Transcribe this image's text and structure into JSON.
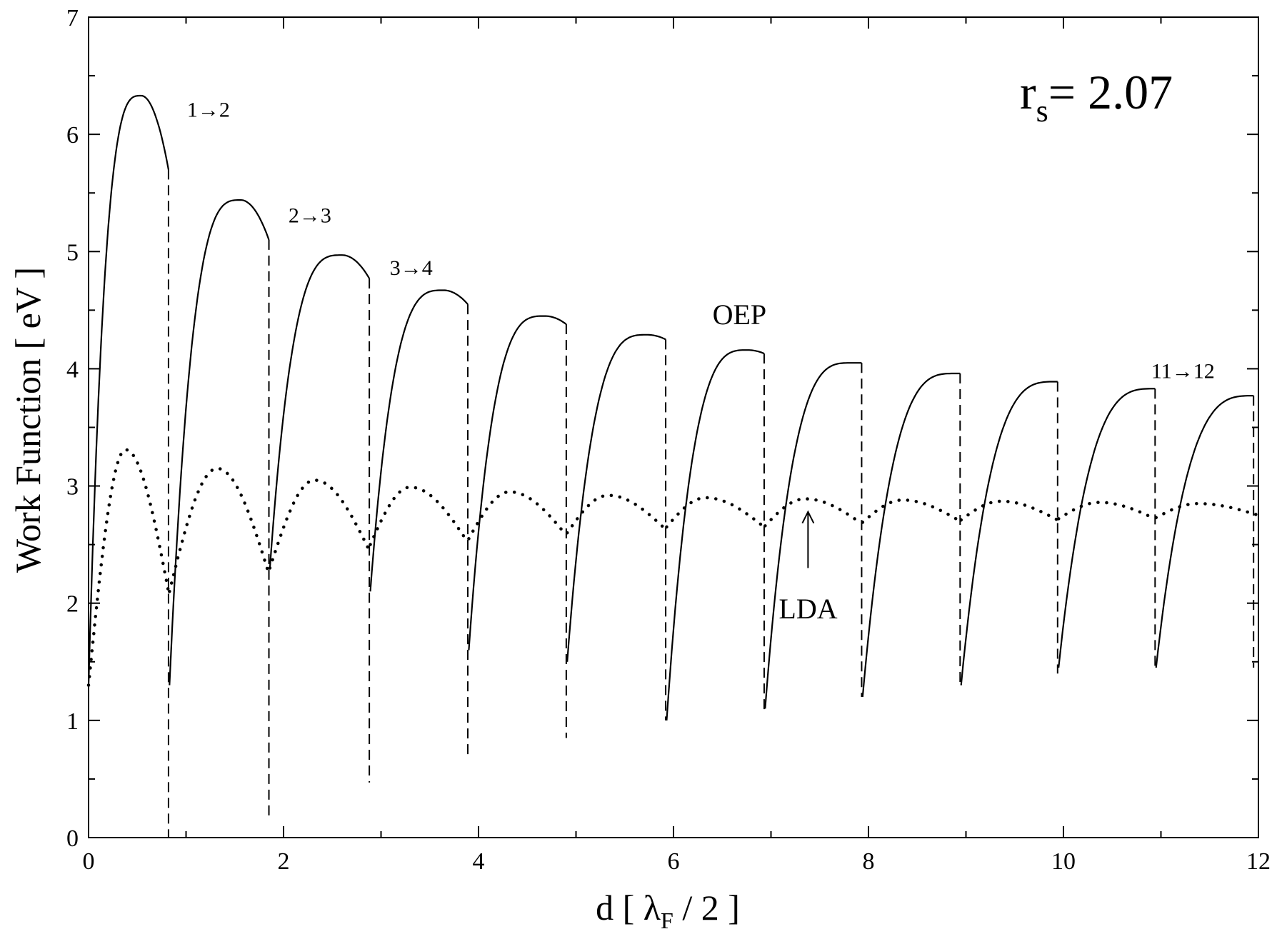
{
  "chart_data": {
    "type": "line",
    "title": "",
    "xlabel_main": "d [ λ",
    "xlabel_sub": "F",
    "xlabel_tail": " / 2 ]",
    "ylabel": "Work Function [ eV ]",
    "xlim": [
      0,
      12
    ],
    "ylim": [
      0,
      7
    ],
    "xticks": [
      0,
      2,
      4,
      6,
      8,
      10,
      12
    ],
    "yticks": [
      0,
      1,
      2,
      3,
      4,
      5,
      6,
      7
    ],
    "x_minor_step": 1,
    "y_minor_step": 0.5,
    "grid": false,
    "inset_label": {
      "main": "r",
      "sub": "s",
      "tail": "= 2.07"
    },
    "series": [
      {
        "name": "OEP",
        "style": "solid",
        "color": "#000000",
        "arches": [
          {
            "start": 0.0,
            "start_y": 1.3,
            "peak": 0.54,
            "peak_y": 6.33,
            "end": 0.82,
            "end_y": 5.7,
            "min_y": 0.0
          },
          {
            "start": 0.83,
            "start_y": 1.3,
            "peak": 1.56,
            "peak_y": 5.44,
            "end": 1.85,
            "end_y": 5.1,
            "min_y": 0.15
          },
          {
            "start": 1.86,
            "start_y": 2.3,
            "peak": 2.6,
            "peak_y": 4.97,
            "end": 2.88,
            "end_y": 4.77,
            "min_y": 0.47
          },
          {
            "start": 2.89,
            "start_y": 2.1,
            "peak": 3.64,
            "peak_y": 4.67,
            "end": 3.89,
            "end_y": 4.55,
            "min_y": 0.68
          },
          {
            "start": 3.9,
            "start_y": 1.6,
            "peak": 4.68,
            "peak_y": 4.45,
            "end": 4.9,
            "end_y": 4.38,
            "min_y": 0.85
          },
          {
            "start": 4.91,
            "start_y": 1.5,
            "peak": 5.73,
            "peak_y": 4.29,
            "end": 5.92,
            "end_y": 4.25,
            "min_y": 1.0
          },
          {
            "start": 5.93,
            "start_y": 1.0,
            "peak": 6.76,
            "peak_y": 4.16,
            "end": 6.93,
            "end_y": 4.13,
            "min_y": 1.07
          },
          {
            "start": 6.94,
            "start_y": 1.1,
            "peak": 7.82,
            "peak_y": 4.05,
            "end": 7.93,
            "end_y": 4.05,
            "min_y": 1.2
          },
          {
            "start": 7.94,
            "start_y": 1.2,
            "peak": 8.89,
            "peak_y": 3.96,
            "end": 8.94,
            "end_y": 3.96,
            "min_y": 1.3
          },
          {
            "start": 8.95,
            "start_y": 1.3,
            "peak": 9.92,
            "peak_y": 3.89,
            "end": 9.94,
            "end_y": 3.89,
            "min_y": 1.4
          },
          {
            "start": 9.95,
            "start_y": 1.45,
            "peak": 10.93,
            "peak_y": 3.83,
            "end": 10.94,
            "end_y": 3.83,
            "min_y": 1.45
          },
          {
            "start": 10.95,
            "start_y": 1.45,
            "peak": 11.95,
            "peak_y": 3.77,
            "end": 11.95,
            "end_y": 3.77,
            "min_y": 1.45
          }
        ]
      },
      {
        "name": "LDA",
        "style": "dotted",
        "color": "#000000",
        "arches": [
          {
            "start": 0.0,
            "start_y": 1.3,
            "peak": 0.38,
            "peak_y": 3.31,
            "end": 0.82,
            "end_y": 2.1
          },
          {
            "start": 0.83,
            "start_y": 2.1,
            "peak": 1.32,
            "peak_y": 3.15,
            "end": 1.85,
            "end_y": 2.25
          },
          {
            "start": 1.86,
            "start_y": 2.3,
            "peak": 2.32,
            "peak_y": 3.05,
            "end": 2.88,
            "end_y": 2.45
          },
          {
            "start": 2.89,
            "start_y": 2.5,
            "peak": 3.3,
            "peak_y": 2.99,
            "end": 3.89,
            "end_y": 2.52
          },
          {
            "start": 3.9,
            "start_y": 2.55,
            "peak": 4.32,
            "peak_y": 2.95,
            "end": 4.9,
            "end_y": 2.58
          },
          {
            "start": 4.91,
            "start_y": 2.6,
            "peak": 5.33,
            "peak_y": 2.92,
            "end": 5.92,
            "end_y": 2.63
          },
          {
            "start": 5.93,
            "start_y": 2.65,
            "peak": 6.33,
            "peak_y": 2.9,
            "end": 6.93,
            "end_y": 2.65
          },
          {
            "start": 6.94,
            "start_y": 2.66,
            "peak": 7.35,
            "peak_y": 2.89,
            "end": 7.93,
            "end_y": 2.68
          },
          {
            "start": 7.94,
            "start_y": 2.69,
            "peak": 8.35,
            "peak_y": 2.88,
            "end": 8.94,
            "end_y": 2.7
          },
          {
            "start": 8.95,
            "start_y": 2.71,
            "peak": 9.36,
            "peak_y": 2.87,
            "end": 9.94,
            "end_y": 2.71
          },
          {
            "start": 9.95,
            "start_y": 2.72,
            "peak": 10.37,
            "peak_y": 2.86,
            "end": 10.94,
            "end_y": 2.72
          },
          {
            "start": 10.95,
            "start_y": 2.73,
            "peak": 11.38,
            "peak_y": 2.85,
            "end": 12.0,
            "end_y": 2.75
          }
        ]
      }
    ],
    "annotations": [
      {
        "text": "1→2",
        "x": 1.01,
        "y": 6.15,
        "size": "small"
      },
      {
        "text": "2→3",
        "x": 2.05,
        "y": 5.25,
        "size": "small"
      },
      {
        "text": "3→4",
        "x": 3.09,
        "y": 4.8,
        "size": "small"
      },
      {
        "text": "11→12",
        "x": 10.9,
        "y": 3.92,
        "size": "small"
      },
      {
        "text": "OEP",
        "x": 6.4,
        "y": 4.38,
        "size": "big"
      },
      {
        "text": "LDA",
        "x": 7.08,
        "y": 1.87,
        "size": "big"
      }
    ],
    "arrow": {
      "x": 7.38,
      "y_from": 2.3,
      "y_to": 2.78,
      "label": "LDA"
    }
  }
}
